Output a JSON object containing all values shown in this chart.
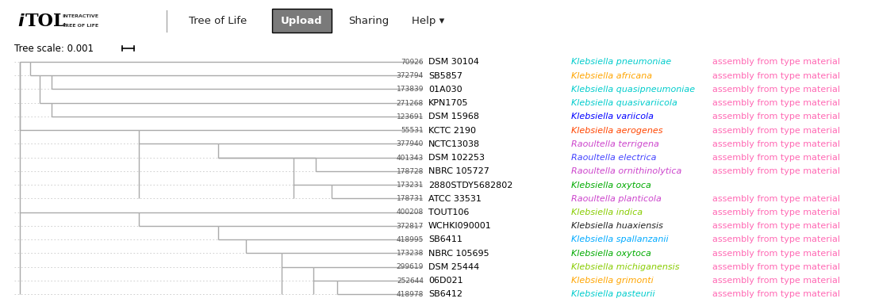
{
  "background_color": "#ffffff",
  "navbar_color": "#b8b8b8",
  "upload_btn_color": "#7a7a7a",
  "rows": [
    {
      "id": "70926",
      "strain": "DSM 30104",
      "species": "Klebsiella pneumoniae",
      "species_color": "#00cccc",
      "note": "assembly from type material",
      "note_color": "#ff69b4",
      "dotted": true
    },
    {
      "id": "372794",
      "strain": "SB5857",
      "species": "Klebsiella africana",
      "species_color": "#ffa500",
      "note": "assembly from type material",
      "note_color": "#ff69b4",
      "dotted": false
    },
    {
      "id": "173839",
      "strain": "01A030",
      "species": "Klebsiella quasipneumoniae",
      "species_color": "#00cccc",
      "note": "assembly from type material",
      "note_color": "#ff69b4",
      "dotted": true
    },
    {
      "id": "271268",
      "strain": "KPN1705",
      "species": "Klebsiella quasivariicola",
      "species_color": "#00cccc",
      "note": "assembly from type material",
      "note_color": "#ff69b4",
      "dotted": false
    },
    {
      "id": "123691",
      "strain": "DSM 15968",
      "species": "Klebsiella variicola",
      "species_color": "#0000ff",
      "note": "assembly from type material",
      "note_color": "#ff69b4",
      "dotted": false
    },
    {
      "id": "55531",
      "strain": "KCTC 2190",
      "species": "Klebsiella aerogenes",
      "species_color": "#ff4500",
      "note": "assembly from type material",
      "note_color": "#ff69b4",
      "dotted": true
    },
    {
      "id": "377940",
      "strain": "NCTC13038",
      "species": "Raoultella terrigena",
      "species_color": "#cc44cc",
      "note": "assembly from type material",
      "note_color": "#ff69b4",
      "dotted": false
    },
    {
      "id": "401343",
      "strain": "DSM 102253",
      "species": "Raoultella electrica",
      "species_color": "#4444ff",
      "note": "assembly from type material",
      "note_color": "#ff69b4",
      "dotted": false
    },
    {
      "id": "178728",
      "strain": "NBRC 105727",
      "species": "Raoultella ornithinolytica",
      "species_color": "#cc44cc",
      "note": "assembly from type material",
      "note_color": "#ff69b4",
      "dotted": false
    },
    {
      "id": "173231",
      "strain": "2880STDY5682802",
      "species": "Klebsiella oxytoca",
      "species_color": "#00aa00",
      "note": "",
      "note_color": "#ff69b4",
      "dotted": false
    },
    {
      "id": "178731",
      "strain": "ATCC 33531",
      "species": "Raoultella planticola",
      "species_color": "#cc44cc",
      "note": "assembly from type material",
      "note_color": "#ff69b4",
      "dotted": false
    },
    {
      "id": "400208",
      "strain": "TOUT106",
      "species": "Klebsiella indica",
      "species_color": "#88cc00",
      "note": "assembly from type material",
      "note_color": "#ff69b4",
      "dotted": false
    },
    {
      "id": "372817",
      "strain": "WCHKI090001",
      "species": "Klebsiella huaxiensis",
      "species_color": "#222222",
      "note": "assembly from type material",
      "note_color": "#ff69b4",
      "dotted": false
    },
    {
      "id": "418995",
      "strain": "SB6411",
      "species": "Klebsiella spallanzanii",
      "species_color": "#00aaff",
      "note": "assembly from type material",
      "note_color": "#ff69b4",
      "dotted": false
    },
    {
      "id": "173238",
      "strain": "NBRC 105695",
      "species": "Klebsiella oxytoca",
      "species_color": "#00aa00",
      "note": "assembly from type material",
      "note_color": "#ff69b4",
      "dotted": false
    },
    {
      "id": "299619",
      "strain": "DSM 25444",
      "species": "Klebsiella michiganensis",
      "species_color": "#88cc00",
      "note": "assembly from type material",
      "note_color": "#ff69b4",
      "dotted": false
    },
    {
      "id": "252644",
      "strain": "06D021",
      "species": "Klebsiella grimonti",
      "species_color": "#ffa500",
      "note": "assembly from type material",
      "note_color": "#ff69b4",
      "dotted": false
    },
    {
      "id": "418978",
      "strain": "SB6412",
      "species": "Klebsiella pasteurii",
      "species_color": "#00cccc",
      "note": "assembly from type material",
      "note_color": "#ff69b4",
      "dotted": false
    }
  ],
  "tree_color": "#aaaaaa",
  "dotted_line_color": "#c8c8c8",
  "tree_lw": 1.0
}
